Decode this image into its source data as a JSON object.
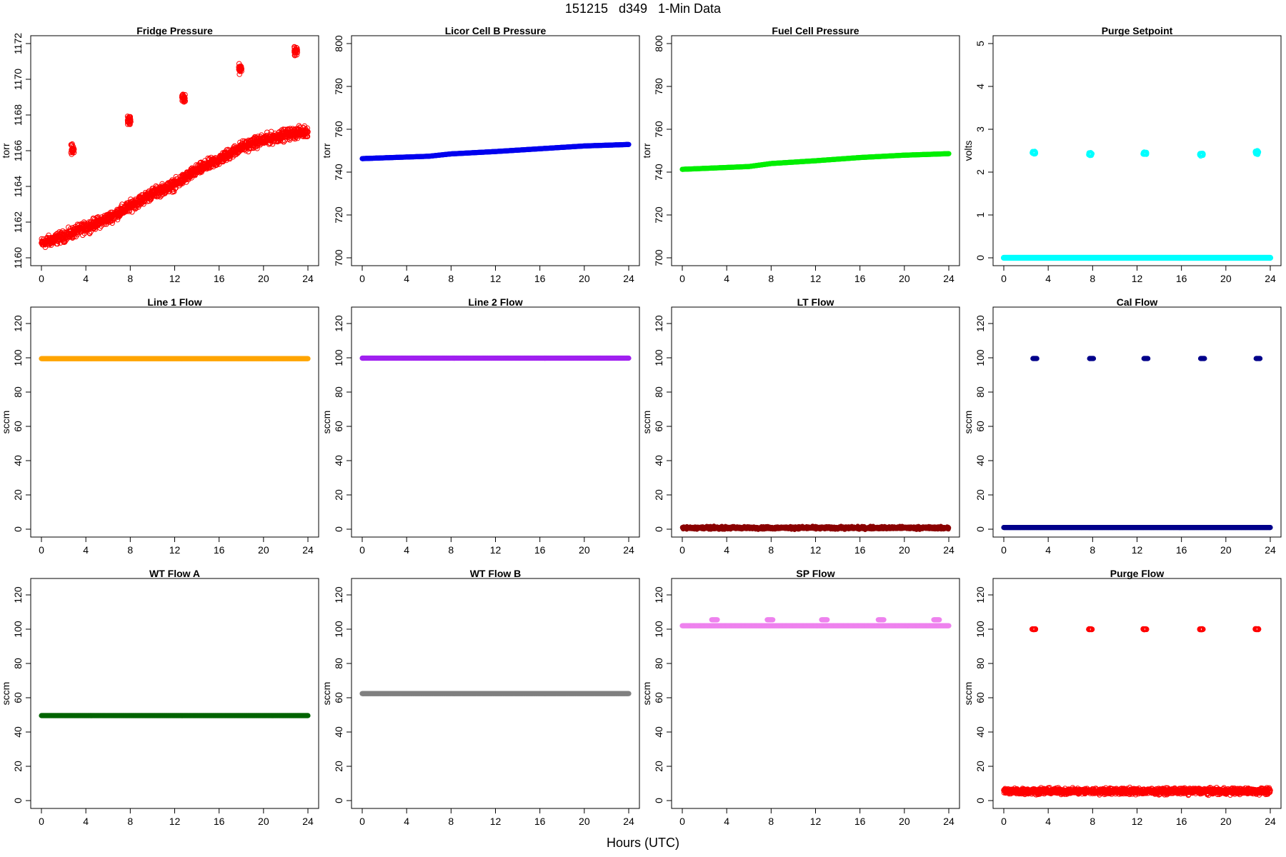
{
  "figure": {
    "title": "151215   d349   1-Min Data",
    "xlabel": "Hours (UTC)"
  },
  "chart_data": [
    {
      "type": "scatter",
      "title": "Fridge Pressure",
      "ylabel": "torr",
      "xlim": [
        0,
        24
      ],
      "ylim": [
        1160,
        1172
      ],
      "xticks": [
        0,
        4,
        8,
        12,
        16,
        20,
        24
      ],
      "yticks": [
        1160,
        1162,
        1164,
        1166,
        1168,
        1170,
        1172
      ],
      "color": "#ff0000",
      "marker": "open-circle",
      "series": [
        {
          "kind": "trend",
          "x": [
            0,
            2,
            4,
            6,
            8,
            10,
            12,
            14,
            16,
            18,
            20,
            22,
            24
          ],
          "y": [
            1160.8,
            1161.2,
            1161.7,
            1162.2,
            1162.9,
            1163.6,
            1164.1,
            1164.9,
            1165.5,
            1166.2,
            1166.6,
            1166.9,
            1167.1
          ],
          "spread": 0.45
        },
        {
          "kind": "cluster",
          "x": [
            2.8,
            7.9,
            12.8,
            17.9,
            22.9
          ],
          "y": [
            1166.1,
            1167.7,
            1168.9,
            1170.6,
            1171.6
          ],
          "spread": 0.45
        }
      ]
    },
    {
      "type": "scatter",
      "title": "Licor Cell B Pressure",
      "ylabel": "torr",
      "xlim": [
        0,
        24
      ],
      "ylim": [
        700,
        800
      ],
      "xticks": [
        0,
        4,
        8,
        12,
        16,
        20,
        24
      ],
      "yticks": [
        700,
        720,
        740,
        760,
        780,
        800
      ],
      "color": "#0000ee",
      "marker": "filled-circle",
      "series": [
        {
          "kind": "line",
          "x": [
            0,
            6,
            8,
            12,
            16,
            20,
            24
          ],
          "y": [
            746.3,
            747.4,
            748.5,
            749.6,
            750.9,
            752.2,
            752.9
          ]
        }
      ]
    },
    {
      "type": "scatter",
      "title": "Fuel Cell Pressure",
      "ylabel": "torr",
      "xlim": [
        0,
        24
      ],
      "ylim": [
        700,
        800
      ],
      "xticks": [
        0,
        4,
        8,
        12,
        16,
        20,
        24
      ],
      "yticks": [
        700,
        720,
        740,
        760,
        780,
        800
      ],
      "color": "#00ee00",
      "marker": "filled-circle",
      "series": [
        {
          "kind": "line",
          "x": [
            0,
            6,
            8,
            12,
            16,
            20,
            24
          ],
          "y": [
            741.3,
            742.6,
            744.0,
            745.3,
            746.8,
            747.9,
            748.6
          ]
        }
      ]
    },
    {
      "type": "scatter",
      "title": "Purge Setpoint",
      "ylabel": "volts",
      "xlim": [
        0,
        24
      ],
      "ylim": [
        0,
        5
      ],
      "xticks": [
        0,
        4,
        8,
        12,
        16,
        20,
        24
      ],
      "yticks": [
        0,
        1,
        2,
        3,
        4,
        5
      ],
      "color": "#00ffff",
      "marker": "open-circle",
      "series": [
        {
          "kind": "line",
          "x": [
            0,
            24
          ],
          "y": [
            0,
            0
          ]
        },
        {
          "kind": "cluster",
          "x": [
            2.7,
            7.8,
            12.7,
            17.8,
            22.8
          ],
          "y": [
            2.45,
            2.42,
            2.44,
            2.42,
            2.46
          ],
          "spread": 0.05
        }
      ]
    },
    {
      "type": "scatter",
      "title": "Line 1 Flow",
      "ylabel": "sccm",
      "xlim": [
        0,
        24
      ],
      "ylim": [
        0,
        125
      ],
      "xticks": [
        0,
        4,
        8,
        12,
        16,
        20,
        24
      ],
      "yticks": [
        0,
        20,
        40,
        60,
        80,
        100,
        120
      ],
      "color": "#ffa500",
      "marker": "filled-circle",
      "series": [
        {
          "kind": "line",
          "x": [
            0,
            24
          ],
          "y": [
            99.5,
            99.5
          ]
        }
      ]
    },
    {
      "type": "scatter",
      "title": "Line 2 Flow",
      "ylabel": "sccm",
      "xlim": [
        0,
        24
      ],
      "ylim": [
        0,
        125
      ],
      "xticks": [
        0,
        4,
        8,
        12,
        16,
        20,
        24
      ],
      "yticks": [
        0,
        20,
        40,
        60,
        80,
        100,
        120
      ],
      "color": "#a020f0",
      "marker": "filled-circle",
      "series": [
        {
          "kind": "line",
          "x": [
            0,
            24
          ],
          "y": [
            99.8,
            99.8
          ]
        }
      ]
    },
    {
      "type": "scatter",
      "title": "LT Flow",
      "ylabel": "sccm",
      "xlim": [
        0,
        24
      ],
      "ylim": [
        0,
        125
      ],
      "xticks": [
        0,
        4,
        8,
        12,
        16,
        20,
        24
      ],
      "yticks": [
        0,
        20,
        40,
        60,
        80,
        100,
        120
      ],
      "color": "#8b0000",
      "marker": "filled-circle",
      "series": [
        {
          "kind": "noise",
          "x": [
            0,
            24
          ],
          "y": [
            0.8,
            0.8
          ],
          "spread": 1.2
        }
      ]
    },
    {
      "type": "scatter",
      "title": "Cal Flow",
      "ylabel": "sccm",
      "xlim": [
        0,
        24
      ],
      "ylim": [
        0,
        125
      ],
      "xticks": [
        0,
        4,
        8,
        12,
        16,
        20,
        24
      ],
      "yticks": [
        0,
        20,
        40,
        60,
        80,
        100,
        120
      ],
      "color": "#00008b",
      "marker": "filled-circle",
      "series": [
        {
          "kind": "line",
          "x": [
            0,
            24
          ],
          "y": [
            1.0,
            1.0
          ]
        },
        {
          "kind": "bar",
          "x": [
            2.8,
            7.9,
            12.8,
            17.9,
            22.9
          ],
          "y": [
            99.6,
            99.6,
            99.6,
            99.6,
            99.6
          ],
          "width": 0.35
        }
      ]
    },
    {
      "type": "scatter",
      "title": "WT Flow A",
      "ylabel": "sccm",
      "xlim": [
        0,
        24
      ],
      "ylim": [
        0,
        125
      ],
      "xticks": [
        0,
        4,
        8,
        12,
        16,
        20,
        24
      ],
      "yticks": [
        0,
        20,
        40,
        60,
        80,
        100,
        120
      ],
      "color": "#006400",
      "marker": "filled-circle",
      "series": [
        {
          "kind": "line",
          "x": [
            0,
            24
          ],
          "y": [
            49.6,
            49.6
          ]
        }
      ]
    },
    {
      "type": "scatter",
      "title": "WT Flow B",
      "ylabel": "sccm",
      "xlim": [
        0,
        24
      ],
      "ylim": [
        0,
        125
      ],
      "xticks": [
        0,
        4,
        8,
        12,
        16,
        20,
        24
      ],
      "yticks": [
        0,
        20,
        40,
        60,
        80,
        100,
        120
      ],
      "color": "#808080",
      "marker": "filled-circle",
      "series": [
        {
          "kind": "line",
          "x": [
            0,
            24
          ],
          "y": [
            62.4,
            62.4
          ]
        }
      ]
    },
    {
      "type": "scatter",
      "title": "SP Flow",
      "ylabel": "sccm",
      "xlim": [
        0,
        24
      ],
      "ylim": [
        0,
        125
      ],
      "xticks": [
        0,
        4,
        8,
        12,
        16,
        20,
        24
      ],
      "yticks": [
        0,
        20,
        40,
        60,
        80,
        100,
        120
      ],
      "color": "#ee82ee",
      "marker": "filled-circle",
      "series": [
        {
          "kind": "line",
          "x": [
            0,
            24
          ],
          "y": [
            102.0,
            102.0
          ]
        },
        {
          "kind": "bar",
          "x": [
            2.9,
            7.9,
            12.8,
            17.9,
            22.9
          ],
          "y": [
            105.5,
            105.5,
            105.5,
            105.5,
            105.5
          ],
          "width": 0.5
        }
      ]
    },
    {
      "type": "scatter",
      "title": "Purge Flow",
      "ylabel": "sccm",
      "xlim": [
        0,
        24
      ],
      "ylim": [
        0,
        125
      ],
      "xticks": [
        0,
        4,
        8,
        12,
        16,
        20,
        24
      ],
      "yticks": [
        0,
        20,
        40,
        60,
        80,
        100,
        120
      ],
      "color": "#ff0000",
      "marker": "open-circle",
      "series": [
        {
          "kind": "noise",
          "x": [
            0,
            24
          ],
          "y": [
            5.5,
            5.5
          ],
          "spread": 2.5
        },
        {
          "kind": "cluster",
          "x": [
            2.7,
            7.8,
            12.7,
            17.8,
            22.8
          ],
          "y": [
            100,
            100,
            100,
            100,
            100
          ],
          "spread": 0.3
        }
      ]
    }
  ]
}
